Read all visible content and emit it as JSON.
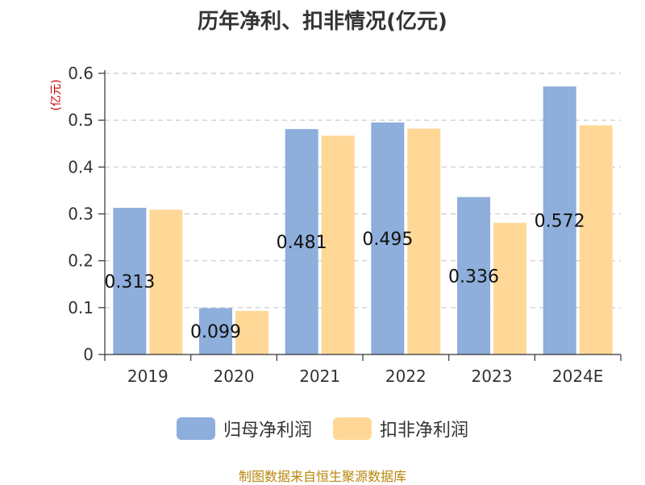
{
  "chart_data": {
    "type": "bar",
    "title": "历年净利、扣非情况(亿元)",
    "ylabel": "(亿元)",
    "xlabel": "",
    "categories": [
      "2019",
      "2020",
      "2021",
      "2022",
      "2023",
      "2024E"
    ],
    "series": [
      {
        "name": "归母净利润",
        "values": [
          0.313,
          0.099,
          0.481,
          0.495,
          0.336,
          0.572
        ],
        "color": "#8eaedb",
        "labels": [
          "0.313",
          "0.099",
          "0.481",
          "0.495",
          "0.336",
          "0.572"
        ]
      },
      {
        "name": "扣非净利润",
        "values": [
          0.309,
          0.093,
          0.467,
          0.482,
          0.281,
          0.489
        ],
        "color": "#ffd898"
      }
    ],
    "ylim": [
      0,
      0.6
    ],
    "yticks": [
      "0",
      "0.1",
      "0.2",
      "0.3",
      "0.4",
      "0.5",
      "0.6"
    ],
    "ytick_values": [
      0,
      0.1,
      0.2,
      0.3,
      0.4,
      0.5,
      0.6
    ],
    "grid": true,
    "legend_position": "bottom",
    "ylabel_color": "#cc0000"
  },
  "source_text": "制图数据来自恒生聚源数据库"
}
